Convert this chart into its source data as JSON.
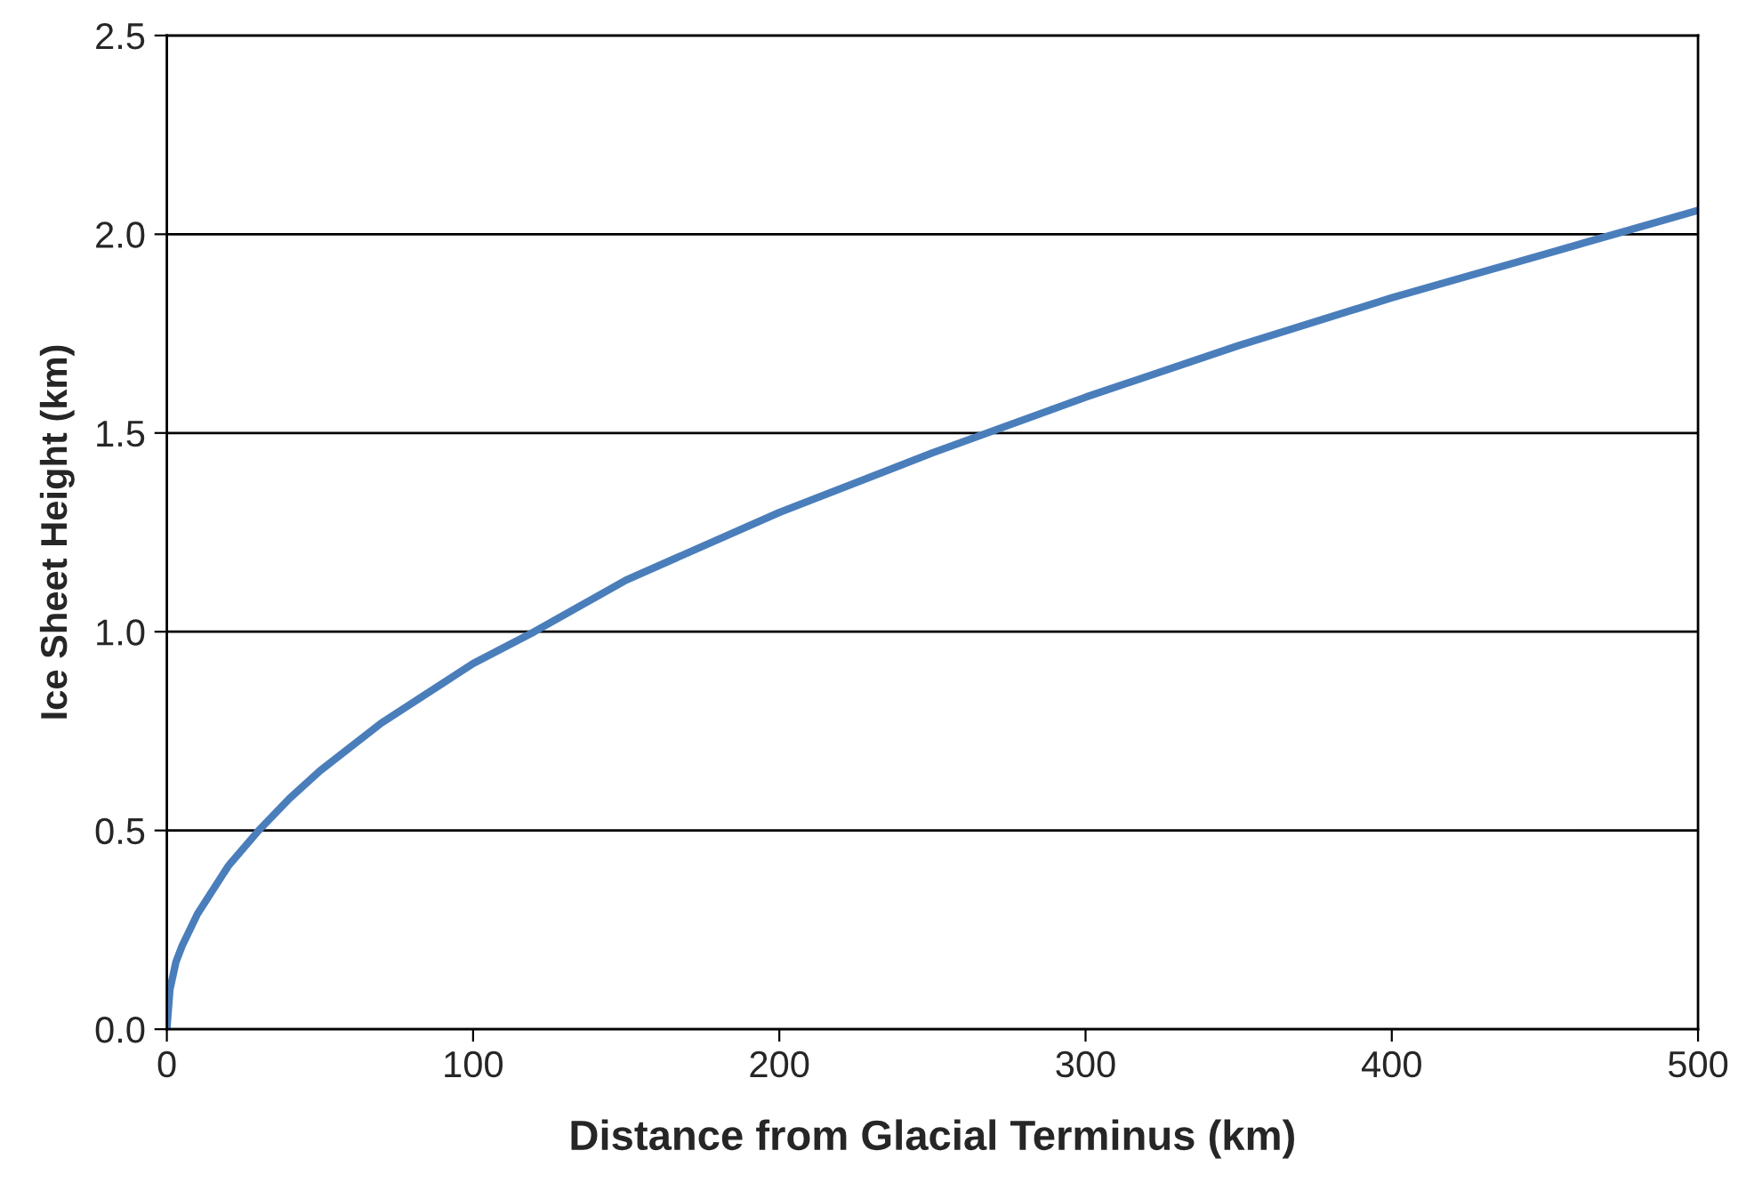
{
  "chart_data": {
    "type": "line",
    "xlabel": "Distance from Glacial Terminus (km)",
    "ylabel": "Ice Sheet Height (km)",
    "x": [
      0,
      1,
      3,
      5,
      10,
      20,
      30,
      40,
      50,
      70,
      100,
      120,
      150,
      200,
      250,
      300,
      350,
      400,
      450,
      500
    ],
    "series": [
      {
        "color": "#4a7ebb",
        "values": [
          0,
          0.1,
          0.17,
          0.21,
          0.29,
          0.41,
          0.5,
          0.58,
          0.65,
          0.77,
          0.92,
          1.0,
          1.13,
          1.3,
          1.45,
          1.59,
          1.72,
          1.84,
          1.95,
          2.06
        ]
      }
    ],
    "xlim": [
      0,
      500
    ],
    "xticks": [
      0,
      100,
      200,
      300,
      400,
      500
    ],
    "ylim": [
      0,
      2.5
    ],
    "yticks": [
      {
        "value": 0,
        "label": "0.0"
      },
      {
        "value": 0.5,
        "label": "0.5"
      },
      {
        "value": 1,
        "label": "1.0"
      },
      {
        "value": 1.5,
        "label": "1.5"
      },
      {
        "value": 2,
        "label": "2.0"
      },
      {
        "value": 2.5,
        "label": "2.5"
      }
    ],
    "grid": "y",
    "marker": "none",
    "line_style": "solid"
  }
}
